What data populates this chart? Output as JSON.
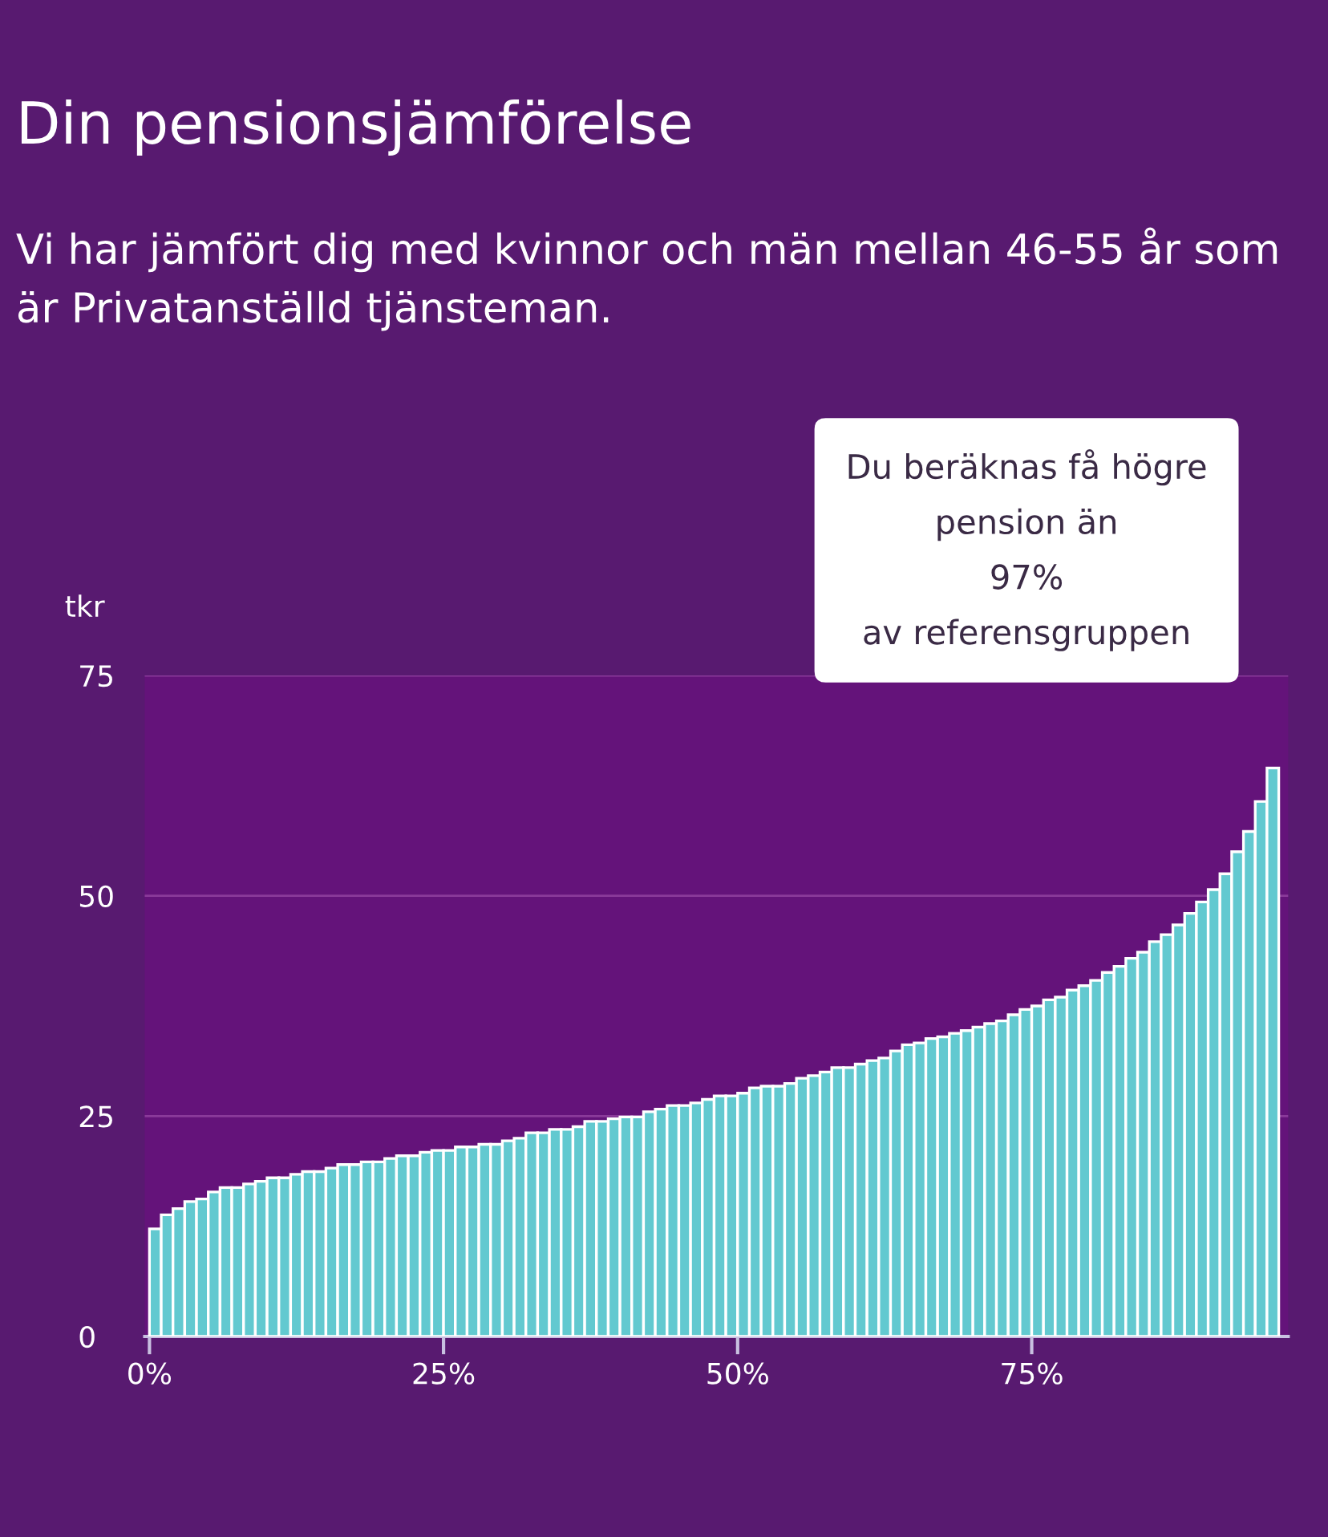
{
  "chart_data": {
    "type": "bar",
    "title": "Din pensionsjämförelse",
    "subtitle": "Vi har jämfört dig med kvinnor och män mellan 46-55 år som är Privatanställd tjänsteman.",
    "ylabel": "tkr",
    "x": [
      0.5,
      1.5,
      2.5,
      3.5,
      4.5,
      5.5,
      6.5,
      7.5,
      8.5,
      9.5,
      10.5,
      11.5,
      12.5,
      13.5,
      14.5,
      15.5,
      16.5,
      17.5,
      18.5,
      19.5,
      20.5,
      21.5,
      22.5,
      23.5,
      24.5,
      25.5,
      26.5,
      27.5,
      28.5,
      29.5,
      30.5,
      31.5,
      32.5,
      33.5,
      34.5,
      35.5,
      36.5,
      37.5,
      38.5,
      39.5,
      40.5,
      41.5,
      42.5,
      43.5,
      44.5,
      45.5,
      46.5,
      47.5,
      48.5,
      49.5,
      50.5,
      51.5,
      52.5,
      53.5,
      54.5,
      55.5,
      56.5,
      57.5,
      58.5,
      59.5,
      60.5,
      61.5,
      62.5,
      63.5,
      64.5,
      65.5,
      66.5,
      67.5,
      68.5,
      69.5,
      70.5,
      71.5,
      72.5,
      73.5,
      74.5,
      75.5,
      76.5,
      77.5,
      78.5,
      79.5,
      80.5,
      81.5,
      82.5,
      83.5,
      84.5,
      85.5,
      86.5,
      87.5,
      88.5,
      89.5,
      90.5,
      91.5,
      92.5,
      93.5,
      94.5,
      95.5
    ],
    "values": [
      12.2,
      13.8,
      14.5,
      15.3,
      15.6,
      16.4,
      16.9,
      16.9,
      17.3,
      17.6,
      18,
      18,
      18.4,
      18.7,
      18.7,
      19.1,
      19.5,
      19.5,
      19.8,
      19.8,
      20.2,
      20.5,
      20.5,
      20.9,
      21.1,
      21.1,
      21.5,
      21.5,
      21.8,
      21.8,
      22.2,
      22.5,
      23.1,
      23.1,
      23.5,
      23.5,
      23.8,
      24.4,
      24.4,
      24.7,
      24.9,
      24.9,
      25.5,
      25.8,
      26.2,
      26.2,
      26.5,
      26.9,
      27.3,
      27.3,
      27.6,
      28.2,
      28.4,
      28.4,
      28.7,
      29.3,
      29.6,
      30,
      30.5,
      30.5,
      30.9,
      31.3,
      31.6,
      32.4,
      33.1,
      33.3,
      33.8,
      34,
      34.4,
      34.7,
      35.1,
      35.5,
      35.8,
      36.5,
      37.1,
      37.5,
      38.2,
      38.5,
      39.3,
      39.8,
      40.4,
      41.3,
      42,
      42.9,
      43.6,
      44.8,
      45.6,
      46.7,
      48,
      49.3,
      50.7,
      52.5,
      55,
      57.3,
      60.7,
      64.5
    ],
    "color": "#62c9d0",
    "xlim": [
      -0.4,
      96.8
    ],
    "ylim": [
      0,
      75
    ],
    "xticks": [
      {
        "value": 0,
        "label": "0%"
      },
      {
        "value": 25,
        "label": "25%"
      },
      {
        "value": 50,
        "label": "50%"
      },
      {
        "value": 75,
        "label": "75%"
      }
    ],
    "yticks": [
      0,
      25,
      50,
      75
    ],
    "grid": "y",
    "annotations": [
      "Du beräknas få högre\npension än\n97%\nav referensgruppen"
    ]
  }
}
